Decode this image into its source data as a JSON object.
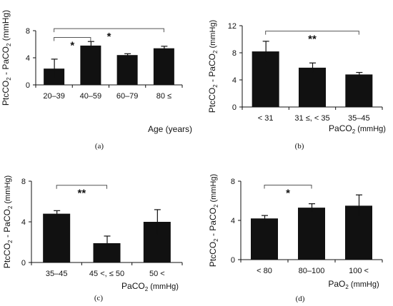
{
  "chart_data": [
    {
      "type": "bar",
      "caption": "(a)",
      "categories": [
        "20–39",
        "40–59",
        "60–79",
        "80 ≤"
      ],
      "values": [
        2.4,
        5.8,
        4.4,
        5.4
      ],
      "errors": [
        1.4,
        0.6,
        0.2,
        0.3
      ],
      "ylabel_main": "PtcCO",
      "ylabel_sub": "2",
      "ylabel_rest": " - PaCO",
      "ylabel_sub2": "2",
      "ylabel_unit": " (mmHg)",
      "xlabel_main": "Age (years)",
      "xlabel_sub": "",
      "xlabel_unit": "",
      "ylim": [
        0,
        8
      ],
      "yticks": [
        "0",
        "4",
        "8"
      ],
      "annotations": [
        {
          "label": "*",
          "from": 0,
          "to": 1,
          "level": 7.0
        },
        {
          "label": "*",
          "from": 0,
          "to": 3,
          "level": 8.3
        }
      ]
    },
    {
      "type": "bar",
      "caption": "(b)",
      "categories": [
        "< 31",
        "31 ≤, < 35",
        "35–45"
      ],
      "values": [
        8.2,
        5.8,
        4.8
      ],
      "errors": [
        1.5,
        0.7,
        0.3
      ],
      "ylabel_main": "PtcCO",
      "ylabel_sub": "2",
      "ylabel_rest": " - PaCO",
      "ylabel_sub2": "2",
      "ylabel_unit": " (mmHg)",
      "xlabel_main": "PaCO",
      "xlabel_sub": "2",
      "xlabel_unit": " (mmHg)",
      "ylim": [
        0,
        12
      ],
      "yticks": [
        "0",
        "4",
        "8",
        "12"
      ],
      "annotations": [
        {
          "label": "**",
          "from": 0,
          "to": 2,
          "level": 11.2
        }
      ]
    },
    {
      "type": "bar",
      "caption": "(c)",
      "categories": [
        "35–45",
        "45 <, ≤ 50",
        "50 <"
      ],
      "values": [
        4.8,
        1.9,
        4.0
      ],
      "errors": [
        0.3,
        0.7,
        1.2
      ],
      "ylabel_main": "PtcCO",
      "ylabel_sub": "2",
      "ylabel_rest": " - PaCO",
      "ylabel_sub2": "2",
      "ylabel_unit": " (mmHg)",
      "xlabel_main": "PaCO",
      "xlabel_sub": "2",
      "xlabel_unit": " (mmHg)",
      "ylim": [
        0,
        8
      ],
      "yticks": [
        "0",
        "4",
        "8"
      ],
      "annotations": [
        {
          "label": "**",
          "from": 0,
          "to": 1,
          "level": 7.6
        }
      ]
    },
    {
      "type": "bar",
      "caption": "(d)",
      "categories": [
        "< 80",
        "80–100",
        "100 <"
      ],
      "values": [
        4.2,
        5.3,
        5.5
      ],
      "errors": [
        0.3,
        0.4,
        1.1
      ],
      "ylabel_main": "PtcCO",
      "ylabel_sub": "2",
      "ylabel_rest": " - PaCO",
      "ylabel_sub2": "2",
      "ylabel_unit": " (mmHg)",
      "xlabel_main": "PaO",
      "xlabel_sub": "2",
      "xlabel_unit": " (mmHg)",
      "ylim": [
        0,
        8
      ],
      "yticks": [
        "0",
        "4",
        "8"
      ],
      "annotations": [
        {
          "label": "*",
          "from": 0,
          "to": 1,
          "level": 7.6
        }
      ]
    }
  ]
}
